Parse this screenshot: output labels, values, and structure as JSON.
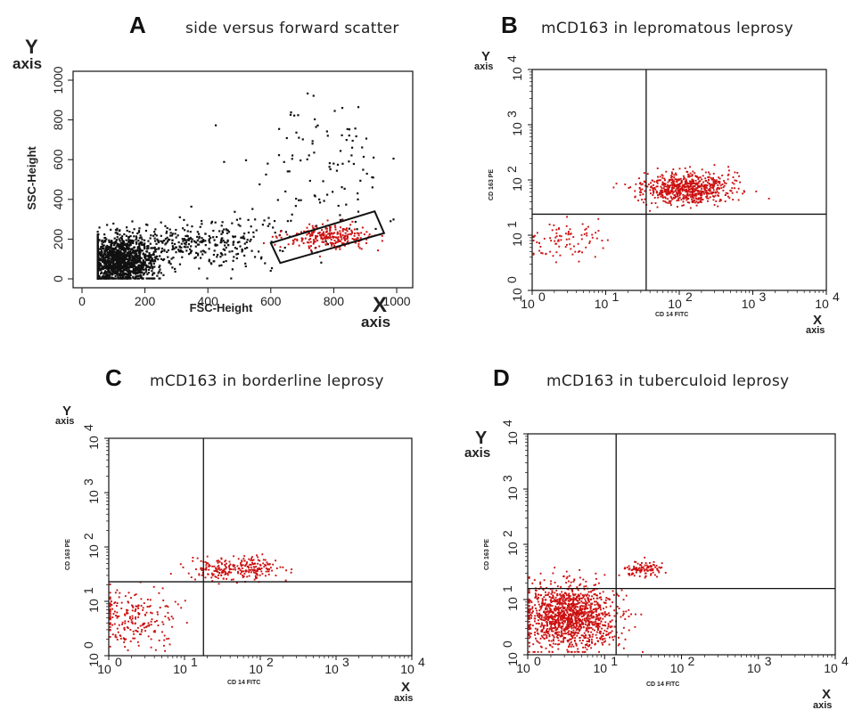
{
  "chart_data": [
    {
      "id": "A",
      "type": "scatter",
      "letter": "A",
      "title": "side versus forward scatter",
      "xlabel": "FSC-Height",
      "ylabel": "SSC-Height",
      "xlim": [
        0,
        1000
      ],
      "ylim": [
        0,
        1000
      ],
      "xticks": [
        "0",
        "200",
        "400",
        "600",
        "800",
        "1000"
      ],
      "yticks": [
        "0",
        "200",
        "400",
        "600",
        "800",
        "1000"
      ],
      "x_axis_word": [
        "X",
        "axis"
      ],
      "y_axis_word": [
        "Y",
        "axis"
      ],
      "gate": [
        [
          600,
          180
        ],
        [
          930,
          340
        ],
        [
          960,
          230
        ],
        [
          630,
          80
        ]
      ],
      "series": [
        {
          "color": "#111111",
          "clusters": [
            {
              "cx": 120,
              "cy": 90,
              "sx": 60,
              "sy": 60,
              "n": 1400
            },
            {
              "cx": 350,
              "cy": 180,
              "sx": 160,
              "sy": 70,
              "n": 350
            },
            {
              "cx": 750,
              "cy": 520,
              "sx": 120,
              "sy": 190,
              "n": 110
            }
          ]
        },
        {
          "color": "#cc1111",
          "clusters": [
            {
              "cx": 790,
              "cy": 210,
              "sx": 70,
              "sy": 30,
              "n": 260
            }
          ]
        }
      ]
    },
    {
      "id": "B",
      "type": "scatter",
      "scale": "log",
      "letter": "B",
      "title": "mCD163 in lepromatous leprosy",
      "xlabel": "CD 14 FITC",
      "ylabel": "CD 163 PE",
      "xlim": [
        1,
        10000
      ],
      "ylim": [
        1,
        10000
      ],
      "x_axis_word": [
        "X",
        "axis"
      ],
      "y_axis_word": [
        "Y",
        "axis"
      ],
      "quadrant_lines": {
        "x": 1.55,
        "y": 1.38
      },
      "series": [
        {
          "color": "#cc1111",
          "clusters": [
            {
              "cx": 2.1,
              "cy": 1.85,
              "sx": 0.3,
              "sy": 0.14,
              "n": 700
            },
            {
              "cx": 0.4,
              "cy": 0.9,
              "sx": 0.25,
              "sy": 0.18,
              "n": 90
            }
          ]
        }
      ]
    },
    {
      "id": "C",
      "type": "scatter",
      "scale": "log",
      "letter": "C",
      "title": "mCD163 in borderline leprosy",
      "xlabel": "CD 14 FITC",
      "ylabel": "CD 163 PE",
      "xlim": [
        1,
        10000
      ],
      "ylim": [
        1,
        10000
      ],
      "x_axis_word": [
        "X",
        "axis"
      ],
      "y_axis_word": [
        "Y",
        "axis"
      ],
      "quadrant_lines": {
        "x": 1.25,
        "y": 1.36
      },
      "series": [
        {
          "color": "#cc1111",
          "clusters": [
            {
              "cx": 1.7,
              "cy": 1.6,
              "sx": 0.3,
              "sy": 0.1,
              "n": 260
            },
            {
              "cx": 0.35,
              "cy": 0.7,
              "sx": 0.3,
              "sy": 0.25,
              "n": 220
            }
          ]
        }
      ]
    },
    {
      "id": "D",
      "type": "scatter",
      "scale": "log",
      "letter": "D",
      "title": "mCD163 in tuberculoid  leprosy",
      "xlabel": "CD 14 FITC",
      "ylabel": "CD 163 PE",
      "xlim": [
        1,
        10000
      ],
      "ylim": [
        1,
        10000
      ],
      "x_axis_word": [
        "X",
        "axis"
      ],
      "y_axis_word": [
        "Y",
        "axis"
      ],
      "quadrant_lines": {
        "x": 1.15,
        "y": 1.2
      },
      "series": [
        {
          "color": "#cc1111",
          "clusters": [
            {
              "cx": 0.55,
              "cy": 0.7,
              "sx": 0.3,
              "sy": 0.28,
              "n": 1300
            },
            {
              "cx": 1.5,
              "cy": 1.55,
              "sx": 0.13,
              "sy": 0.07,
              "n": 110
            }
          ]
        }
      ]
    }
  ]
}
